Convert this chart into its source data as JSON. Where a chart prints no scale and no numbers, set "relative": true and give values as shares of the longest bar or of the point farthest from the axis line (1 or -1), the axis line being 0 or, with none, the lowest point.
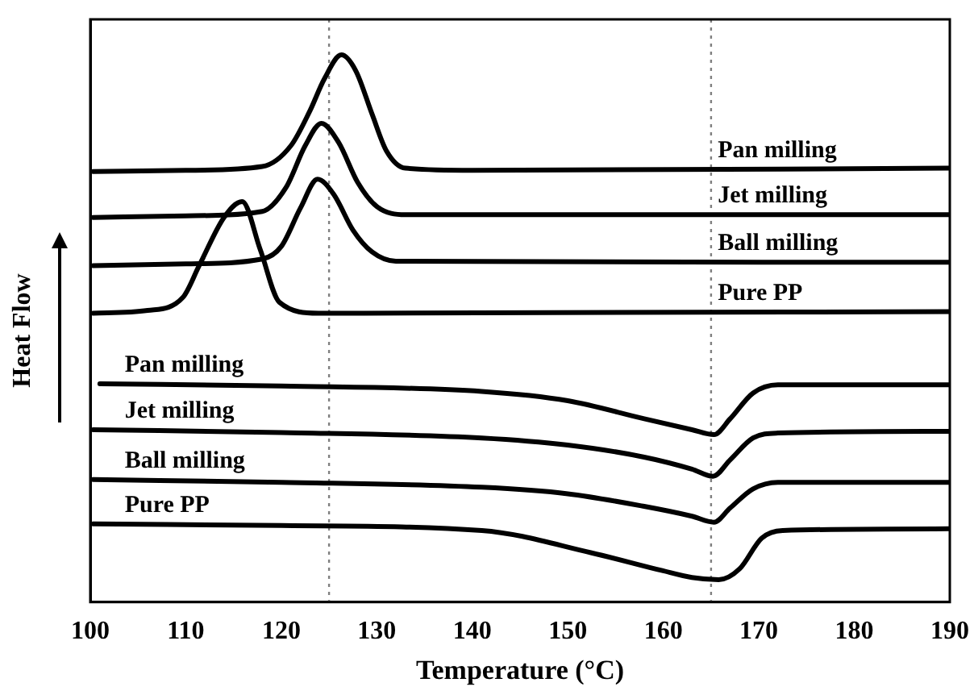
{
  "chart_data": {
    "type": "line",
    "relative": true,
    "xlabel": "Temperature (°C)",
    "ylabel": "Heat Flow",
    "xlim": [
      100,
      190
    ],
    "xticks": [
      100,
      110,
      120,
      130,
      140,
      150,
      160,
      170,
      180,
      190
    ],
    "legend": false,
    "grid": false,
    "marker": "none",
    "line_style": "solid",
    "ref_lines": [
      {
        "axis": "x",
        "value": 125,
        "color": "#808080",
        "line_style": "dotted"
      },
      {
        "axis": "x",
        "value": 165,
        "color": "#808080",
        "line_style": "dotted"
      }
    ],
    "series": [
      {
        "name": "Pan milling",
        "color": "#000000",
        "x": [
          100.3,
          110,
          118,
          121,
          123,
          124.5,
          126.3,
          127.8,
          129.5,
          131,
          133,
          140,
          190
        ],
        "values": [
          0.787,
          0.789,
          0.796,
          0.834,
          0.898,
          0.956,
          1.0,
          0.971,
          0.892,
          0.825,
          0.793,
          0.789,
          0.793
        ]
      },
      {
        "name": "Jet milling",
        "color": "#000000",
        "x": [
          100.3,
          110,
          118,
          120.5,
          122.5,
          124.2,
          126,
          128,
          130,
          133,
          190
        ],
        "values": [
          0.703,
          0.706,
          0.714,
          0.758,
          0.834,
          0.875,
          0.84,
          0.767,
          0.723,
          0.708,
          0.708
        ]
      },
      {
        "name": "Ball milling",
        "color": "#000000",
        "x": [
          100.3,
          110,
          118,
          120,
          122,
          123.8,
          125.5,
          127.5,
          129.5,
          132,
          190
        ],
        "values": [
          0.615,
          0.618,
          0.627,
          0.65,
          0.72,
          0.773,
          0.745,
          0.68,
          0.64,
          0.623,
          0.621
        ]
      },
      {
        "name": "Pure PP",
        "color": "#000000",
        "x": [
          100.3,
          106,
          109.7,
          111.4,
          114,
          115.9,
          117.8,
          119.8,
          123.9,
          190
        ],
        "values": [
          0.528,
          0.533,
          0.557,
          0.615,
          0.703,
          0.732,
          0.644,
          0.548,
          0.528,
          0.531
        ]
      },
      {
        "name": "Pan milling",
        "color": "#000000",
        "x": [
          101,
          120,
          141,
          150,
          158,
          163,
          165.3,
          167,
          169.4,
          172,
          190
        ],
        "values": [
          0.399,
          0.395,
          0.385,
          0.368,
          0.335,
          0.315,
          0.306,
          0.335,
          0.382,
          0.397,
          0.397
        ]
      },
      {
        "name": "Jet milling",
        "color": "#000000",
        "x": [
          100.3,
          120,
          141,
          150,
          158,
          163,
          165.2,
          167,
          169.4,
          172,
          190
        ],
        "values": [
          0.315,
          0.31,
          0.3,
          0.287,
          0.265,
          0.243,
          0.23,
          0.26,
          0.3,
          0.309,
          0.312
        ]
      },
      {
        "name": "Ball milling",
        "color": "#000000",
        "x": [
          100.3,
          120,
          141,
          150,
          158,
          163,
          165.3,
          167,
          169.4,
          172,
          190
        ],
        "values": [
          0.224,
          0.219,
          0.21,
          0.198,
          0.175,
          0.157,
          0.146,
          0.172,
          0.207,
          0.219,
          0.219
        ]
      },
      {
        "name": "Pure PP",
        "color": "#000000",
        "x": [
          100.3,
          120,
          141,
          152.5,
          159.8,
          163,
          165.8,
          168,
          170.3,
          172.5,
          190
        ],
        "values": [
          0.143,
          0.14,
          0.131,
          0.09,
          0.058,
          0.045,
          0.041,
          0.061,
          0.117,
          0.131,
          0.134
        ]
      }
    ]
  }
}
